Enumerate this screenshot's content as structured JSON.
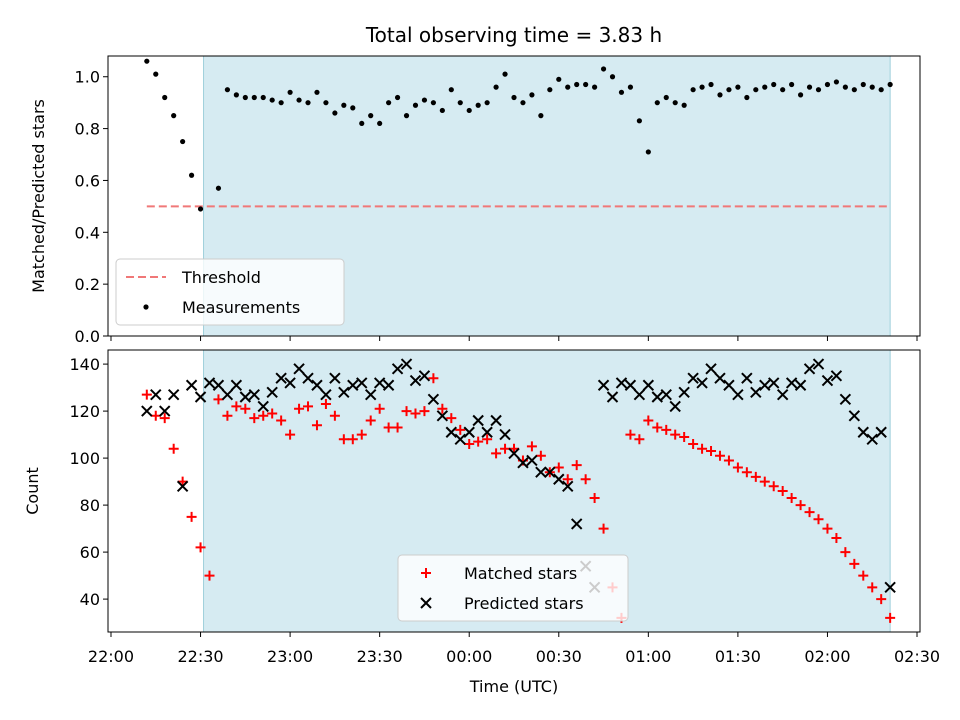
{
  "chart_data": [
    {
      "type": "scatter",
      "title": "Total observing time = 3.83 h",
      "xlabel": "",
      "ylabel": "Matched/Predicted stars",
      "ylim": [
        0,
        1.08
      ],
      "yticks": [
        "0.0",
        "0.2",
        "0.4",
        "0.6",
        "0.8",
        "1.0"
      ],
      "ytick_values": [
        0,
        0.2,
        0.4,
        0.6,
        0.8,
        1.0
      ],
      "shaded_span": [
        "22:31",
        "02:21"
      ],
      "legend_position": "lower-left",
      "threshold": {
        "name": "Threshold",
        "value": 0.5,
        "x_range": [
          "22:12",
          "02:21"
        ],
        "color": "#f07878"
      },
      "series": [
        {
          "name": "Measurements",
          "color": "#000000",
          "x": [
            "22:12",
            "22:15",
            "22:18",
            "22:21",
            "22:24",
            "22:27",
            "22:30",
            "22:36",
            "22:39",
            "22:42",
            "22:45",
            "22:48",
            "22:51",
            "22:54",
            "22:57",
            "23:00",
            "23:03",
            "23:06",
            "23:09",
            "23:12",
            "23:15",
            "23:18",
            "23:21",
            "23:24",
            "23:27",
            "23:30",
            "23:33",
            "23:36",
            "23:39",
            "23:42",
            "23:45",
            "23:48",
            "23:51",
            "23:54",
            "23:57",
            "00:00",
            "00:03",
            "00:06",
            "00:09",
            "00:12",
            "00:15",
            "00:18",
            "00:21",
            "00:24",
            "00:27",
            "00:30",
            "00:33",
            "00:36",
            "00:39",
            "00:42",
            "00:45",
            "00:48",
            "00:51",
            "00:54",
            "00:57",
            "01:00",
            "01:03",
            "01:06",
            "01:09",
            "01:12",
            "01:15",
            "01:18",
            "01:21",
            "01:24",
            "01:27",
            "01:30",
            "01:33",
            "01:36",
            "01:39",
            "01:42",
            "01:45",
            "01:48",
            "01:51",
            "01:54",
            "01:57",
            "02:00",
            "02:03",
            "02:06",
            "02:09",
            "02:12",
            "02:15",
            "02:18",
            "02:21"
          ],
          "y": [
            1.06,
            1.01,
            0.92,
            0.85,
            0.75,
            0.62,
            0.49,
            0.57,
            0.95,
            0.93,
            0.92,
            0.92,
            0.92,
            0.91,
            0.9,
            0.94,
            0.91,
            0.9,
            0.94,
            0.9,
            0.86,
            0.89,
            0.88,
            0.82,
            0.85,
            0.82,
            0.9,
            0.92,
            0.85,
            0.89,
            0.91,
            0.9,
            0.87,
            0.95,
            0.9,
            0.87,
            0.89,
            0.9,
            0.96,
            1.01,
            0.92,
            0.9,
            0.93,
            0.85,
            0.95,
            0.99,
            0.96,
            0.97,
            0.97,
            0.96,
            1.03,
            1.0,
            0.94,
            0.96,
            0.83,
            0.71,
            0.9,
            0.92,
            0.9,
            0.89,
            0.95,
            0.96,
            0.97,
            0.93,
            0.95,
            0.96,
            0.92,
            0.95,
            0.96,
            0.97,
            0.95,
            0.97,
            0.93,
            0.96,
            0.95,
            0.97,
            0.98,
            0.96,
            0.95,
            0.97,
            0.96,
            0.95,
            0.97
          ]
        }
      ]
    },
    {
      "type": "scatter",
      "title": "",
      "xlabel": "Time (UTC)",
      "ylabel": "Count",
      "ylim": [
        26,
        146
      ],
      "xlim": [
        "22:00",
        "02:31"
      ],
      "yticks": [
        "40",
        "60",
        "80",
        "100",
        "120",
        "140"
      ],
      "ytick_values": [
        40,
        60,
        80,
        100,
        120,
        140
      ],
      "xticks": [
        "22:00",
        "22:30",
        "23:00",
        "23:30",
        "00:00",
        "00:30",
        "01:00",
        "01:30",
        "02:00",
        "02:30"
      ],
      "shaded_span": [
        "22:31",
        "02:21"
      ],
      "legend_position": "lower-center",
      "series": [
        {
          "name": "Matched stars",
          "marker": "+",
          "color": "#ff0000",
          "x": [
            "22:12",
            "22:15",
            "22:18",
            "22:21",
            "22:24",
            "22:27",
            "22:30",
            "22:33",
            "22:36",
            "22:39",
            "22:42",
            "22:45",
            "22:48",
            "22:51",
            "22:54",
            "22:57",
            "23:00",
            "23:03",
            "23:06",
            "23:09",
            "23:12",
            "23:15",
            "23:18",
            "23:21",
            "23:24",
            "23:27",
            "23:30",
            "23:33",
            "23:36",
            "23:39",
            "23:42",
            "23:45",
            "23:48",
            "23:51",
            "23:54",
            "23:57",
            "00:00",
            "00:03",
            "00:06",
            "00:09",
            "00:12",
            "00:15",
            "00:18",
            "00:21",
            "00:24",
            "00:27",
            "00:30",
            "00:33",
            "00:36",
            "00:39",
            "00:42",
            "00:45",
            "00:48",
            "00:51",
            "00:54",
            "00:57",
            "01:00",
            "01:03",
            "01:06",
            "01:09",
            "01:12",
            "01:15",
            "01:18",
            "01:21",
            "01:24",
            "01:27",
            "01:30",
            "01:33",
            "01:36",
            "01:39",
            "01:42",
            "01:45",
            "01:48",
            "01:51",
            "01:54",
            "01:57",
            "02:00",
            "02:03",
            "02:06",
            "02:09",
            "02:12",
            "02:15",
            "02:18",
            "02:21"
          ],
          "y": [
            127,
            118,
            117,
            104,
            90,
            75,
            62,
            50,
            125,
            118,
            122,
            121,
            117,
            118,
            119,
            116,
            110,
            121,
            122,
            114,
            123,
            118,
            108,
            108,
            110,
            116,
            121,
            113,
            113,
            120,
            119,
            120,
            134,
            121,
            117,
            112,
            106,
            107,
            108,
            102,
            104,
            104,
            99,
            105,
            101,
            94,
            96,
            91,
            97,
            91,
            83,
            70,
            45,
            32,
            110,
            108,
            116,
            113,
            112,
            110,
            109,
            106,
            104,
            103,
            101,
            99,
            96,
            94,
            92,
            90,
            88,
            86,
            83,
            80,
            77,
            74,
            70,
            66,
            60,
            55,
            50,
            45,
            40,
            32
          ]
        },
        {
          "name": "Predicted stars",
          "marker": "x",
          "color": "#000000",
          "x": [
            "22:12",
            "22:15",
            "22:18",
            "22:21",
            "22:24",
            "22:27",
            "22:30",
            "22:33",
            "22:36",
            "22:39",
            "22:42",
            "22:45",
            "22:48",
            "22:51",
            "22:54",
            "22:57",
            "23:00",
            "23:03",
            "23:06",
            "23:09",
            "23:12",
            "23:15",
            "23:18",
            "23:21",
            "23:24",
            "23:27",
            "23:30",
            "23:33",
            "23:36",
            "23:39",
            "23:42",
            "23:45",
            "23:48",
            "23:51",
            "23:54",
            "23:57",
            "00:00",
            "00:03",
            "00:06",
            "00:09",
            "00:12",
            "00:15",
            "00:18",
            "00:21",
            "00:24",
            "00:27",
            "00:30",
            "00:33",
            "00:36",
            "00:39",
            "00:42",
            "00:45",
            "00:48",
            "00:51",
            "00:54",
            "00:57",
            "01:00",
            "01:03",
            "01:06",
            "01:09",
            "01:12",
            "01:15",
            "01:18",
            "01:21",
            "01:24",
            "01:27",
            "01:30",
            "01:33",
            "01:36",
            "01:39",
            "01:42",
            "01:45",
            "01:48",
            "01:51",
            "01:54",
            "01:57",
            "02:00",
            "02:03",
            "02:06",
            "02:09",
            "02:12",
            "02:15",
            "02:18",
            "02:21"
          ],
          "y": [
            120,
            127,
            120,
            127,
            88,
            131,
            126,
            132,
            131,
            127,
            131,
            126,
            127,
            122,
            128,
            134,
            132,
            138,
            134,
            131,
            127,
            134,
            128,
            131,
            132,
            127,
            132,
            131,
            138,
            140,
            133,
            135,
            125,
            118,
            111,
            108,
            111,
            116,
            111,
            116,
            110,
            102,
            98,
            99,
            94,
            94,
            91,
            88,
            72,
            54,
            45,
            131,
            126,
            132,
            131,
            127,
            131,
            126,
            127,
            122,
            128,
            134,
            132,
            138,
            134,
            131,
            127,
            134,
            128,
            131,
            132,
            127,
            132,
            131,
            138,
            140,
            133,
            135,
            125,
            118,
            111,
            108,
            111,
            45
          ]
        }
      ]
    }
  ]
}
